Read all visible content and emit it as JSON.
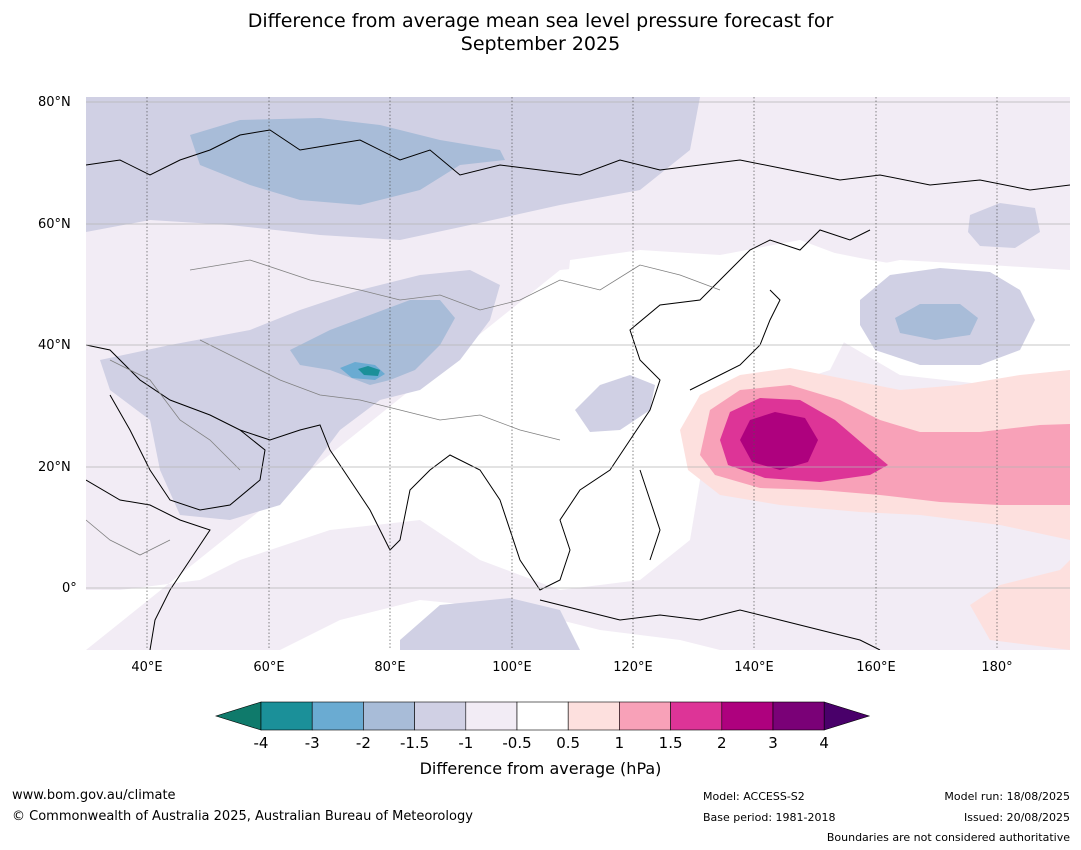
{
  "title_line1": "Difference from average mean sea level pressure forecast for",
  "title_line2": "September 2025",
  "map": {
    "projection": "equirectangular",
    "lon_range": [
      30,
      190
    ],
    "lat_range": [
      -10,
      81
    ],
    "lat_labels": [
      "80°N",
      "60°N",
      "40°N",
      "20°N",
      "0°"
    ],
    "lat_values": [
      80,
      60,
      40,
      20,
      0
    ],
    "lon_labels": [
      "40°E",
      "60°E",
      "80°E",
      "100°E",
      "120°E",
      "140°E",
      "160°E",
      "180°"
    ],
    "lon_values": [
      40,
      60,
      80,
      100,
      120,
      140,
      160,
      180
    ],
    "ocean_color": "#ffffff",
    "coastline_color": "#000000",
    "border_color": "#808080"
  },
  "colorbar": {
    "label": "Difference from average (hPa)",
    "ticks": [
      "-4",
      "-3",
      "-2",
      "-1.5",
      "-1",
      "-0.5",
      "0.5",
      "1",
      "1.5",
      "2",
      "3",
      "4"
    ],
    "colors": [
      "#0f7a6b",
      "#1b9099",
      "#6aabd2",
      "#a8bcd8",
      "#d0d0e4",
      "#f2ecf5",
      "#ffffff",
      "#fde0de",
      "#f8a1b8",
      "#dd3497",
      "#ae017e",
      "#7a0177",
      "#49006a"
    ]
  },
  "footer": {
    "website": "www.bom.gov.au/climate",
    "copyright": "© Commonwealth of Australia 2025, Australian Bureau of Meteorology",
    "model": "Model: ACCESS-S2",
    "base_period": "Base period: 1981-2018",
    "model_run": "Model run: 18/08/2025",
    "issued": "Issued: 20/08/2025",
    "disclaimer": "Boundaries are not considered authoritative"
  }
}
